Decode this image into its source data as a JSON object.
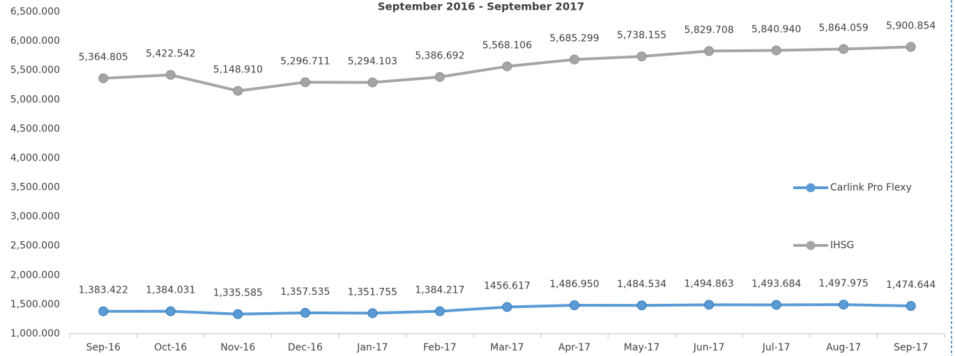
{
  "chart_data": {
    "type": "line",
    "title": "September 2016 - September 2017",
    "categories": [
      "Sep-16",
      "Oct-16",
      "Nov-16",
      "Dec-16",
      "Jan-17",
      "Feb-17",
      "Mar-17",
      "Apr-17",
      "May-17",
      "Jun-17",
      "Jul-17",
      "Aug-17",
      "Sep-17"
    ],
    "series": [
      {
        "name": "Carlink Pro Flexy",
        "color": "#5b9bd5",
        "values": [
          1383.422,
          1384.031,
          1335.585,
          1357.535,
          1351.755,
          1384.217,
          1456.617,
          1486.95,
          1484.534,
          1494.863,
          1493.684,
          1497.975,
          1474.644
        ],
        "value_labels": [
          "1,383.422",
          "1,384.031",
          "1,335.585",
          "1,357.535",
          "1,351.755",
          "1,384.217",
          "1456.617",
          "1,486.950",
          "1,484.534",
          "1,494.863",
          "1,493.684",
          "1,497.975",
          "1,474.644"
        ]
      },
      {
        "name": "IHSG",
        "color": "#a5a5a5",
        "values": [
          5364.805,
          5422.542,
          5148.91,
          5296.711,
          5294.103,
          5386.692,
          5568.106,
          5685.299,
          5738.155,
          5829.708,
          5840.94,
          5864.059,
          5900.854
        ],
        "value_labels": [
          "5,364.805",
          "5,422.542",
          "5,148.910",
          "5,296.711",
          "5,294.103",
          "5,386.692",
          "5,568.106",
          "5,685.299",
          "5,738.155",
          "5,829.708",
          "5,840.940",
          "5,864.059",
          "5,900.854"
        ]
      }
    ],
    "ylim": [
      1000,
      6500
    ],
    "yticks": [
      {
        "value": 1000,
        "label": "1,000.000"
      },
      {
        "value": 1500,
        "label": "1,500.000"
      },
      {
        "value": 2000,
        "label": "2,000.000"
      },
      {
        "value": 2500,
        "label": "2,500.000"
      },
      {
        "value": 3000,
        "label": "3,000.000"
      },
      {
        "value": 3500,
        "label": "3,500.000"
      },
      {
        "value": 4000,
        "label": "4,000.000"
      },
      {
        "value": 4500,
        "label": "4,500.000"
      },
      {
        "value": 5000,
        "label": "5,000.000"
      },
      {
        "value": 5500,
        "label": "5,500.000"
      },
      {
        "value": 6000,
        "label": "6,000.000"
      },
      {
        "value": 6500,
        "label": "6,500.000"
      }
    ],
    "grid": false,
    "legend": "right"
  }
}
